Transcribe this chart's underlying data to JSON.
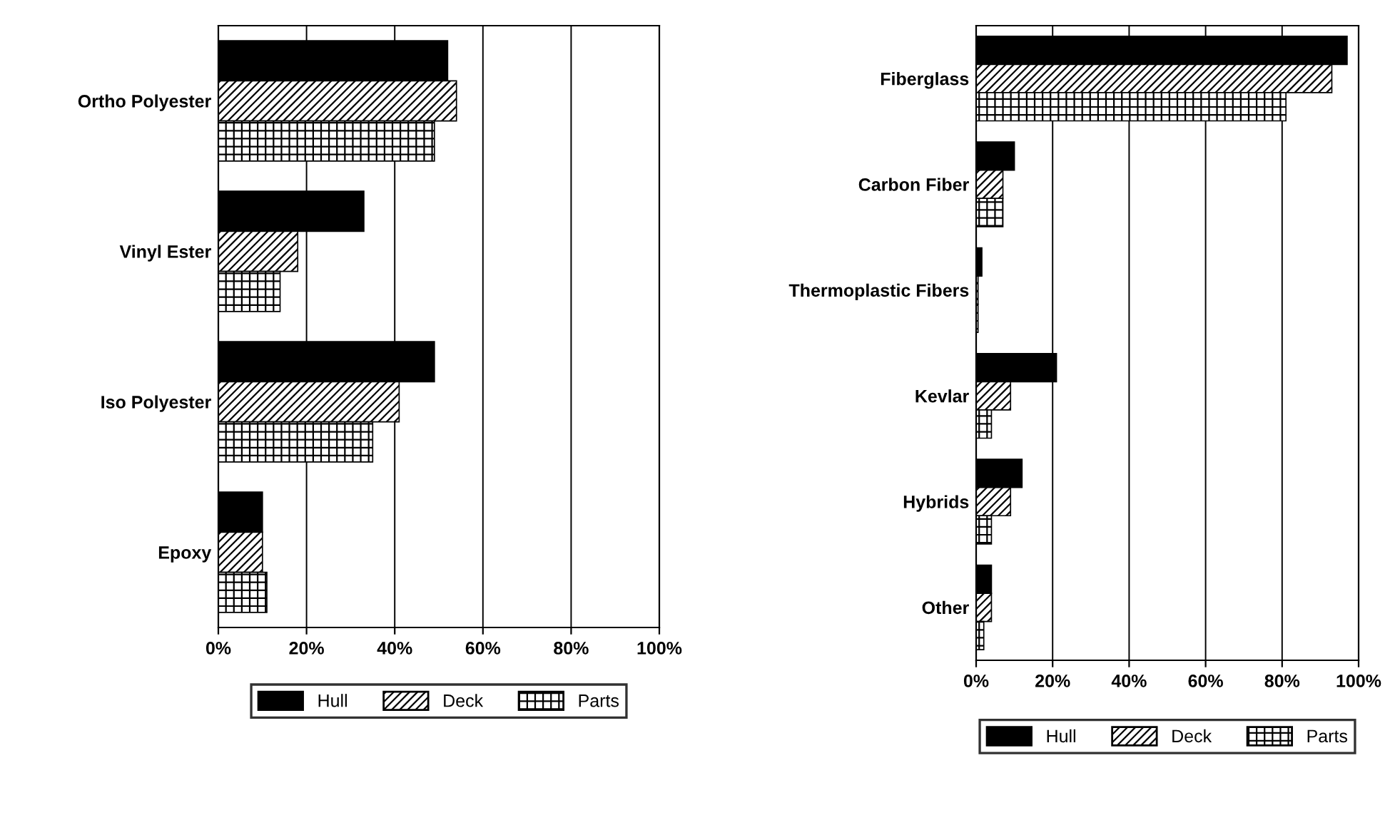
{
  "chart_data": [
    {
      "type": "bar",
      "orientation": "horizontal",
      "categories": [
        "Ortho Polyester",
        "Vinyl Ester",
        "Iso Polyester",
        "Epoxy"
      ],
      "series": [
        {
          "name": "Hull",
          "color": "#000000",
          "values": [
            52,
            33,
            49,
            10
          ]
        },
        {
          "name": "Deck",
          "color": "#000000",
          "values": [
            54,
            18,
            41,
            10
          ]
        },
        {
          "name": "Parts",
          "color": "#000000",
          "values": [
            49,
            14,
            35,
            11
          ]
        }
      ],
      "xlim": [
        0,
        100
      ],
      "xticks": [
        {
          "value": 0,
          "label": "0%"
        },
        {
          "value": 20,
          "label": "20%"
        },
        {
          "value": 40,
          "label": "40%"
        },
        {
          "value": 60,
          "label": "60%"
        },
        {
          "value": 80,
          "label": "80%"
        },
        {
          "value": 100,
          "label": "100%"
        }
      ],
      "grid": "x",
      "legend": "bottom"
    },
    {
      "type": "bar",
      "orientation": "horizontal",
      "categories": [
        "Fiberglass",
        "Carbon Fiber",
        "Thermoplastic Fibers",
        "Kevlar",
        "Hybrids",
        "Other"
      ],
      "series": [
        {
          "name": "Hull",
          "color": "#000000",
          "values": [
            97,
            10,
            1.5,
            21,
            12,
            4
          ]
        },
        {
          "name": "Deck",
          "color": "#000000",
          "values": [
            93,
            7,
            0.5,
            9,
            9,
            4
          ]
        },
        {
          "name": "Parts",
          "color": "#000000",
          "values": [
            81,
            7,
            0.5,
            4,
            4,
            2
          ]
        }
      ],
      "xlim": [
        0,
        100
      ],
      "xticks": [
        {
          "value": 0,
          "label": "0%"
        },
        {
          "value": 20,
          "label": "20%"
        },
        {
          "value": 40,
          "label": "40%"
        },
        {
          "value": 60,
          "label": "60%"
        },
        {
          "value": 80,
          "label": "80%"
        },
        {
          "value": 100,
          "label": "100%"
        }
      ],
      "grid": "x",
      "legend": "bottom"
    }
  ]
}
